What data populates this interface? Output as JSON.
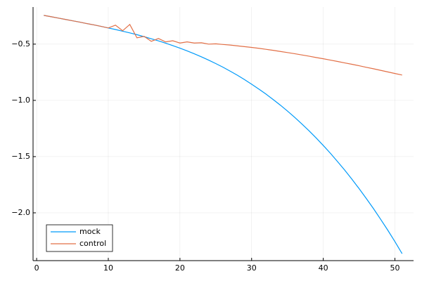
{
  "chart_data": {
    "type": "line",
    "x": [
      1,
      2,
      3,
      4,
      5,
      6,
      7,
      8,
      9,
      10,
      11,
      12,
      13,
      14,
      15,
      16,
      17,
      18,
      19,
      20,
      21,
      22,
      23,
      24,
      25,
      26,
      27,
      28,
      29,
      30,
      31,
      32,
      33,
      34,
      35,
      36,
      37,
      38,
      39,
      40,
      41,
      42,
      43,
      44,
      45,
      46,
      47,
      48,
      49,
      50,
      51
    ],
    "series": [
      {
        "name": "mock",
        "color": "#009af9",
        "values": [
          -0.244,
          -0.256,
          -0.268,
          -0.28,
          -0.292,
          -0.304,
          -0.317,
          -0.329,
          -0.342,
          -0.356,
          -0.37,
          -0.385,
          -0.4,
          -0.416,
          -0.434,
          -0.452,
          -0.471,
          -0.491,
          -0.513,
          -0.536,
          -0.56,
          -0.586,
          -0.613,
          -0.642,
          -0.673,
          -0.705,
          -0.74,
          -0.776,
          -0.815,
          -0.856,
          -0.899,
          -0.944,
          -0.992,
          -1.042,
          -1.095,
          -1.15,
          -1.209,
          -1.27,
          -1.334,
          -1.401,
          -1.471,
          -1.545,
          -1.621,
          -1.701,
          -1.785,
          -1.872,
          -1.962,
          -2.057,
          -2.154,
          -2.256,
          -2.363
        ]
      },
      {
        "name": "control",
        "color": "#e26f46",
        "values": [
          -0.244,
          -0.256,
          -0.268,
          -0.28,
          -0.292,
          -0.304,
          -0.317,
          -0.329,
          -0.342,
          -0.356,
          -0.331,
          -0.381,
          -0.325,
          -0.444,
          -0.431,
          -0.475,
          -0.45,
          -0.48,
          -0.47,
          -0.49,
          -0.48,
          -0.49,
          -0.488,
          -0.5,
          -0.497,
          -0.503,
          -0.508,
          -0.515,
          -0.522,
          -0.529,
          -0.537,
          -0.546,
          -0.555,
          -0.565,
          -0.575,
          -0.585,
          -0.596,
          -0.607,
          -0.619,
          -0.63,
          -0.642,
          -0.654,
          -0.667,
          -0.679,
          -0.692,
          -0.706,
          -0.719,
          -0.733,
          -0.747,
          -0.761,
          -0.775
        ]
      }
    ],
    "xlim": [
      -0.5,
      52.6
    ],
    "xticks": [
      0,
      10,
      20,
      30,
      40,
      50
    ],
    "ylim": [
      -2.425,
      -0.17
    ],
    "yticks": [
      {
        "value": -2.0,
        "label": "−2.0"
      },
      {
        "value": -1.5,
        "label": "−1.5"
      },
      {
        "value": -1.0,
        "label": "−1.0"
      },
      {
        "value": -0.5,
        "label": "−0.5"
      }
    ],
    "grid": true,
    "legend": "bottom-left"
  }
}
